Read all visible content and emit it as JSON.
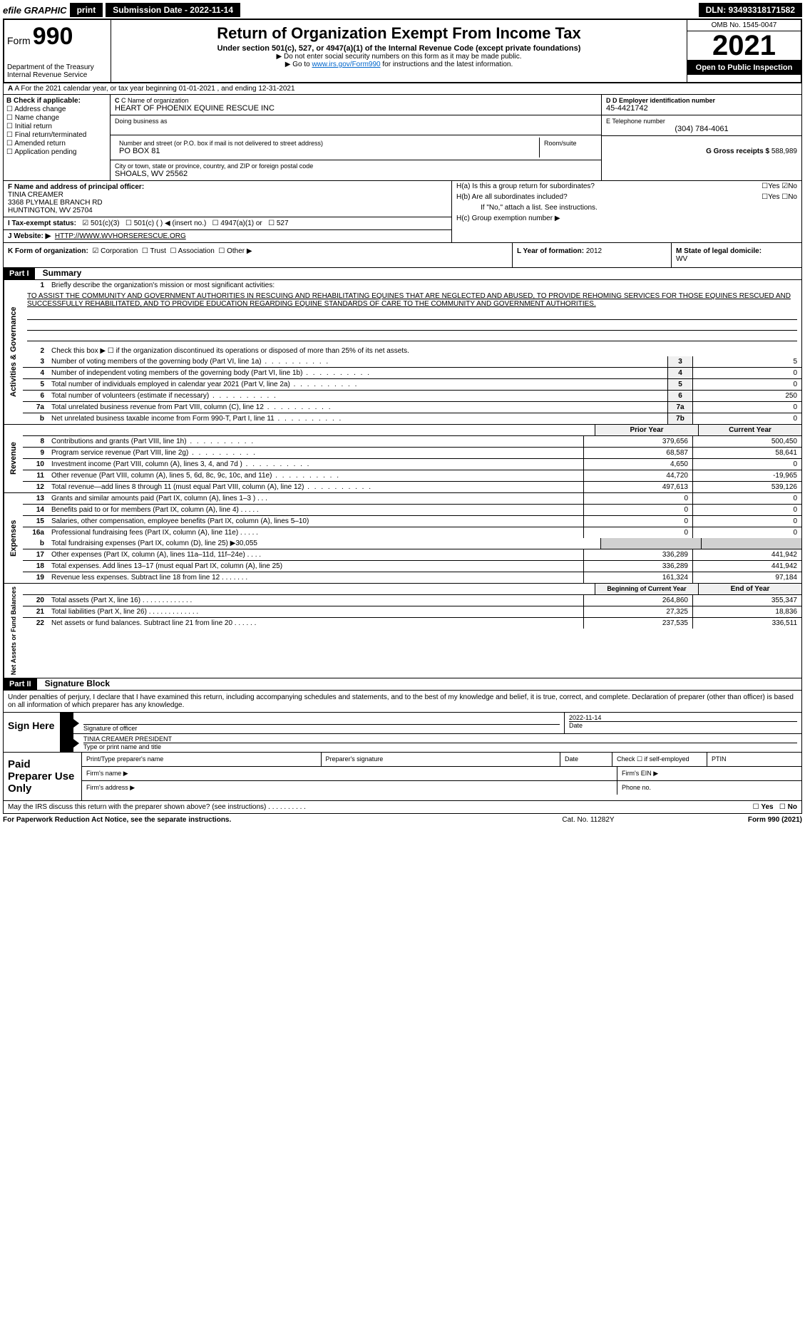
{
  "topbar": {
    "efile": "efile GRAPHIC",
    "print": "print",
    "submission": "Submission Date - 2022-11-14",
    "dln": "DLN: 93493318171582"
  },
  "header": {
    "form_prefix": "Form",
    "form_num": "990",
    "dept": "Department of the Treasury",
    "irs": "Internal Revenue Service",
    "title": "Return of Organization Exempt From Income Tax",
    "subtitle": "Under section 501(c), 527, or 4947(a)(1) of the Internal Revenue Code (except private foundations)",
    "note1": "▶ Do not enter social security numbers on this form as it may be made public.",
    "note2_pre": "▶ Go to ",
    "note2_link": "www.irs.gov/Form990",
    "note2_post": " for instructions and the latest information.",
    "omb": "OMB No. 1545-0047",
    "year": "2021",
    "open": "Open to Public Inspection"
  },
  "row_a": "A For the 2021 calendar year, or tax year beginning 01-01-2021    , and ending 12-31-2021",
  "section_b": {
    "b_label": "B Check if applicable:",
    "checks": [
      "Address change",
      "Name change",
      "Initial return",
      "Final return/terminated",
      "Amended return",
      "Application pending"
    ],
    "c_label": "C Name of organization",
    "org_name": "HEART OF PHOENIX EQUINE RESCUE INC",
    "dba_label": "Doing business as",
    "addr_label": "Number and street (or P.O. box if mail is not delivered to street address)",
    "addr_val": "PO BOX 81",
    "room_label": "Room/suite",
    "city_label": "City or town, state or province, country, and ZIP or foreign postal code",
    "city_val": "SHOALS, WV  25562",
    "d_label": "D Employer identification number",
    "d_val": "45-4421742",
    "e_label": "E Telephone number",
    "e_val": "(304) 784-4061",
    "g_label": "G Gross receipts $",
    "g_val": "588,989"
  },
  "section_fj": {
    "f_label": "F  Name and address of principal officer:",
    "f_name": "TINIA CREAMER",
    "f_addr1": "3368 PLYMALE BRANCH RD",
    "f_addr2": "HUNTINGTON, WV  25704",
    "i_label": "I  Tax-exempt status:",
    "i_501c3": "501(c)(3)",
    "i_501c": "501(c) (  ) ◀ (insert no.)",
    "i_4947": "4947(a)(1) or",
    "i_527": "527",
    "j_label": "J   Website: ▶",
    "j_val": "HTTP://WWW.WVHORSERESCUE.ORG",
    "ha_label": "H(a)  Is this a group return for subordinates?",
    "hb_label": "H(b)  Are all subordinates included?",
    "hb_note": "If \"No,\" attach a list. See instructions.",
    "hc_label": "H(c)  Group exemption number ▶",
    "yes": "Yes",
    "no": "No"
  },
  "row_k": {
    "k_label": "K Form of organization:",
    "k_corp": "Corporation",
    "k_trust": "Trust",
    "k_assoc": "Association",
    "k_other": "Other ▶",
    "l_label": "L Year of formation:",
    "l_val": "2012",
    "m_label": "M State of legal domicile:",
    "m_val": "WV"
  },
  "part1": {
    "header": "Part I",
    "title": "Summary",
    "vert1": "Activities & Governance",
    "vert2": "Revenue",
    "vert3": "Expenses",
    "vert4": "Net Assets or Fund Balances",
    "line1_label": "Briefly describe the organization's mission or most significant activities:",
    "mission": "TO ASSIST THE COMMUNITY AND GOVERNMENT AUTHORITIES IN RESCUING AND REHABILITATING EQUINES THAT ARE NEGLECTED AND ABUSED, TO PROVIDE REHOMING SERVICES FOR THOSE EQUINES RESCUED AND SUCCESSFULLY REHABILITATED, AND TO PROVIDE EDUCATION REGARDING EQUINE STANDARDS OF CARE TO THE COMMUNITY AND GOVERNMENT AUTHORITIES.",
    "line2": "Check this box ▶ ☐  if the organization discontinued its operations or disposed of more than 25% of its net assets.",
    "lines_ag": [
      {
        "n": "3",
        "t": "Number of voting members of the governing body (Part VI, line 1a)",
        "b": "3",
        "v": "5"
      },
      {
        "n": "4",
        "t": "Number of independent voting members of the governing body (Part VI, line 1b)",
        "b": "4",
        "v": "0"
      },
      {
        "n": "5",
        "t": "Total number of individuals employed in calendar year 2021 (Part V, line 2a)",
        "b": "5",
        "v": "0"
      },
      {
        "n": "6",
        "t": "Total number of volunteers (estimate if necessary)",
        "b": "6",
        "v": "250"
      },
      {
        "n": "7a",
        "t": "Total unrelated business revenue from Part VIII, column (C), line 12",
        "b": "7a",
        "v": "0"
      },
      {
        "n": "b",
        "t": "Net unrelated business taxable income from Form 990-T, Part I, line 11",
        "b": "7b",
        "v": "0"
      }
    ],
    "prior_header": "Prior Year",
    "current_header": "Current Year",
    "lines_rev": [
      {
        "n": "8",
        "t": "Contributions and grants (Part VIII, line 1h)",
        "p": "379,656",
        "c": "500,450"
      },
      {
        "n": "9",
        "t": "Program service revenue (Part VIII, line 2g)",
        "p": "68,587",
        "c": "58,641"
      },
      {
        "n": "10",
        "t": "Investment income (Part VIII, column (A), lines 3, 4, and 7d )",
        "p": "4,650",
        "c": "0"
      },
      {
        "n": "11",
        "t": "Other revenue (Part VIII, column (A), lines 5, 6d, 8c, 9c, 10c, and 11e)",
        "p": "44,720",
        "c": "-19,965"
      },
      {
        "n": "12",
        "t": "Total revenue—add lines 8 through 11 (must equal Part VIII, column (A), line 12)",
        "p": "497,613",
        "c": "539,126"
      }
    ],
    "lines_exp": [
      {
        "n": "13",
        "t": "Grants and similar amounts paid (Part IX, column (A), lines 1–3 )   .    .    .",
        "p": "0",
        "c": "0"
      },
      {
        "n": "14",
        "t": "Benefits paid to or for members (Part IX, column (A), line 4)  .    .    .    .    .",
        "p": "0",
        "c": "0"
      },
      {
        "n": "15",
        "t": "Salaries, other compensation, employee benefits (Part IX, column (A), lines 5–10)",
        "p": "0",
        "c": "0"
      },
      {
        "n": "16a",
        "t": "Professional fundraising fees (Part IX, column (A), line 11e)  .    .    .    .    .",
        "p": "0",
        "c": "0"
      }
    ],
    "line_b": "Total fundraising expenses (Part IX, column (D), line 25) ▶30,055",
    "lines_exp2": [
      {
        "n": "17",
        "t": "Other expenses (Part IX, column (A), lines 11a–11d, 11f–24e)  .    .    .    .",
        "p": "336,289",
        "c": "441,942"
      },
      {
        "n": "18",
        "t": "Total expenses. Add lines 13–17 (must equal Part IX, column (A), line 25)",
        "p": "336,289",
        "c": "441,942"
      },
      {
        "n": "19",
        "t": "Revenue less expenses. Subtract line 18 from line 12  .    .    .    .    .    .    .",
        "p": "161,324",
        "c": "97,184"
      }
    ],
    "boy_header": "Beginning of Current Year",
    "eoy_header": "End of Year",
    "lines_net": [
      {
        "n": "20",
        "t": "Total assets (Part X, line 16)  .    .    .    .    .    .    .    .    .    .    .    .    .",
        "p": "264,860",
        "c": "355,347"
      },
      {
        "n": "21",
        "t": "Total liabilities (Part X, line 26)  .    .    .    .    .    .    .    .    .    .    .    .    .",
        "p": "27,325",
        "c": "18,836"
      },
      {
        "n": "22",
        "t": "Net assets or fund balances. Subtract line 21 from line 20  .    .    .    .    .    .",
        "p": "237,535",
        "c": "336,511"
      }
    ]
  },
  "part2": {
    "header": "Part II",
    "title": "Signature Block",
    "declaration": "Under penalties of perjury, I declare that I have examined this return, including accompanying schedules and statements, and to the best of my knowledge and belief, it is true, correct, and complete. Declaration of preparer (other than officer) is based on all information of which preparer has any knowledge.",
    "sign_here": "Sign Here",
    "sig_officer": "Signature of officer",
    "sig_date": "2022-11-14",
    "date_label": "Date",
    "officer_name": "TINIA CREAMER  PRESIDENT",
    "type_label": "Type or print name and title",
    "paid": "Paid Preparer Use Only",
    "ptp_name": "Print/Type preparer's name",
    "prep_sig": "Preparer's signature",
    "check_self": "Check ☐ if self-employed",
    "ptin": "PTIN",
    "firm_name": "Firm's name    ▶",
    "firm_ein": "Firm's EIN ▶",
    "firm_addr": "Firm's address ▶",
    "phone": "Phone no.",
    "may_irs": "May the IRS discuss this return with the preparer shown above? (see instructions)   .    .    .    .    .    .    .    .    .    .",
    "footer_left": "For Paperwork Reduction Act Notice, see the separate instructions.",
    "footer_mid": "Cat. No. 11282Y",
    "footer_right": "Form 990 (2021)"
  }
}
